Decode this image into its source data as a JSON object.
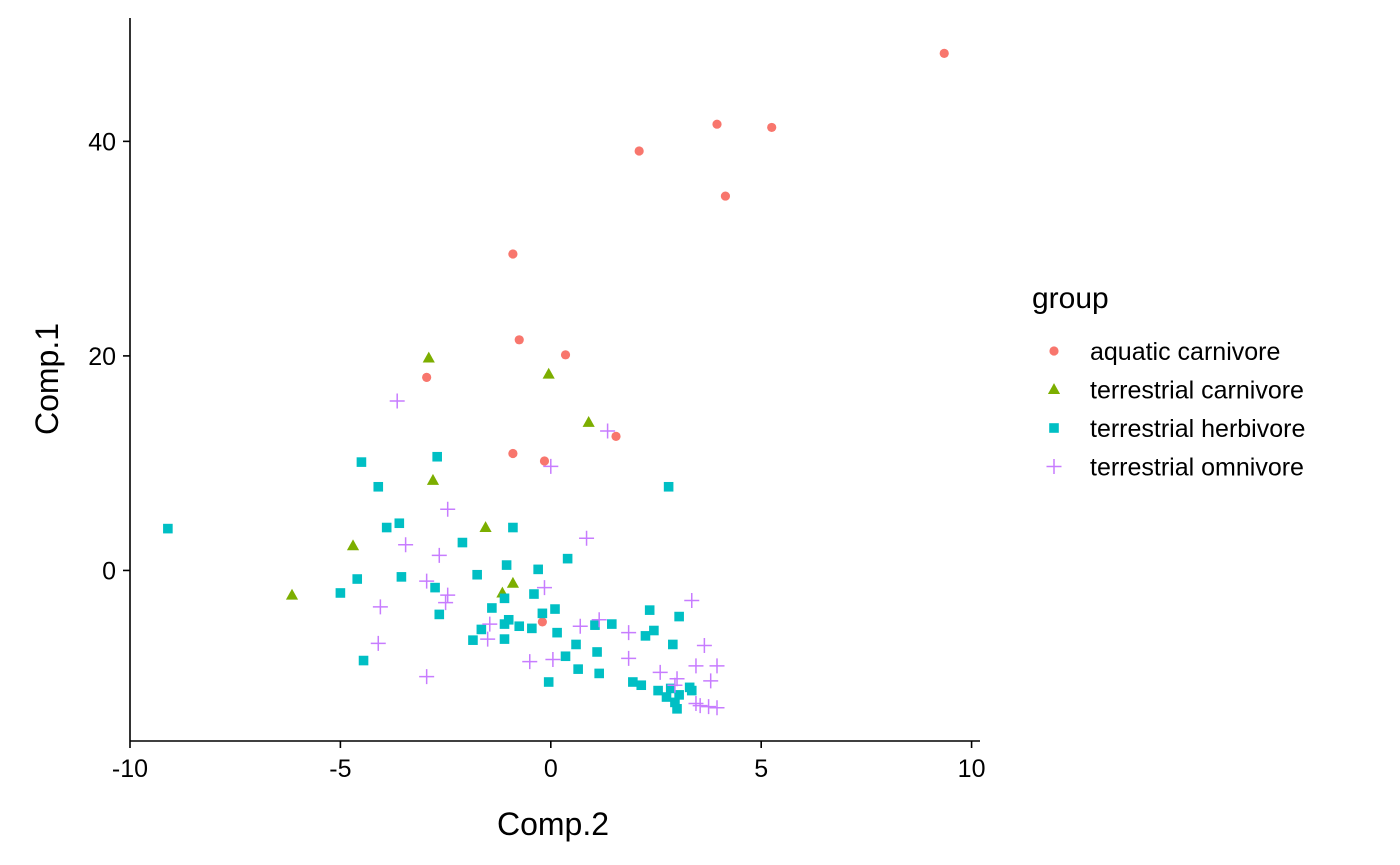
{
  "chart_data": {
    "type": "scatter",
    "title": "",
    "xlabel": "Comp.2",
    "ylabel": "Comp.1",
    "xlim": [
      -10,
      10.2
    ],
    "ylim": [
      -15.9,
      51.5
    ],
    "xticks": [
      -10,
      -5,
      0,
      5,
      10
    ],
    "xtick_labels": [
      "-10",
      "-5",
      "0",
      "5",
      "10"
    ],
    "yticks": [
      0,
      20,
      40
    ],
    "ytick_labels": [
      "0",
      "20",
      "40"
    ],
    "grid": false,
    "legend": {
      "title": "group",
      "position": "right"
    },
    "series": [
      {
        "name": "aquatic carnivore",
        "shape": "circle",
        "color": "#F8766D",
        "points": [
          [
            9.35,
            48.2
          ],
          [
            3.95,
            41.6
          ],
          [
            5.25,
            41.3
          ],
          [
            2.1,
            39.1
          ],
          [
            4.15,
            34.9
          ],
          [
            -0.9,
            29.5
          ],
          [
            -0.75,
            21.5
          ],
          [
            0.35,
            20.1
          ],
          [
            -2.95,
            18.0
          ],
          [
            1.55,
            12.5
          ],
          [
            -0.9,
            10.9
          ],
          [
            -0.15,
            10.2
          ],
          [
            -0.2,
            -4.8
          ]
        ]
      },
      {
        "name": "terrestrial carnivore",
        "shape": "triangle",
        "color": "#7CAE00",
        "points": [
          [
            -2.9,
            19.8
          ],
          [
            -0.05,
            18.3
          ],
          [
            0.9,
            13.8
          ],
          [
            -2.8,
            8.4
          ],
          [
            -1.55,
            4.0
          ],
          [
            -4.7,
            2.3
          ],
          [
            -0.9,
            -1.2
          ],
          [
            -6.15,
            -2.3
          ],
          [
            -1.15,
            -2.1
          ]
        ]
      },
      {
        "name": "terrestrial herbivore",
        "shape": "square",
        "color": "#00BFC4",
        "points": [
          [
            -9.1,
            3.9
          ],
          [
            -4.5,
            10.1
          ],
          [
            -2.7,
            10.6
          ],
          [
            2.8,
            7.8
          ],
          [
            -4.1,
            7.8
          ],
          [
            -3.6,
            4.4
          ],
          [
            -3.9,
            4.0
          ],
          [
            -0.9,
            4.0
          ],
          [
            -2.1,
            2.6
          ],
          [
            0.4,
            1.1
          ],
          [
            -1.05,
            0.5
          ],
          [
            -0.3,
            0.1
          ],
          [
            -1.75,
            -0.4
          ],
          [
            -3.55,
            -0.6
          ],
          [
            -4.6,
            -0.8
          ],
          [
            -2.75,
            -1.6
          ],
          [
            -5.0,
            -2.1
          ],
          [
            -0.4,
            -2.2
          ],
          [
            -1.1,
            -2.6
          ],
          [
            -1.4,
            -3.5
          ],
          [
            0.1,
            -3.6
          ],
          [
            -0.2,
            -4.0
          ],
          [
            -2.65,
            -4.1
          ],
          [
            2.35,
            -3.7
          ],
          [
            3.05,
            -4.3
          ],
          [
            -1.0,
            -4.6
          ],
          [
            -1.1,
            -5.0
          ],
          [
            -0.75,
            -5.2
          ],
          [
            -0.45,
            -5.4
          ],
          [
            1.05,
            -5.1
          ],
          [
            1.45,
            -5.0
          ],
          [
            2.45,
            -5.6
          ],
          [
            -1.65,
            -5.5
          ],
          [
            0.15,
            -5.8
          ],
          [
            2.25,
            -6.1
          ],
          [
            -1.85,
            -6.5
          ],
          [
            -1.1,
            -6.4
          ],
          [
            0.6,
            -6.9
          ],
          [
            2.9,
            -6.9
          ],
          [
            1.1,
            -7.6
          ],
          [
            0.35,
            -8.0
          ],
          [
            -4.45,
            -8.4
          ],
          [
            0.65,
            -9.2
          ],
          [
            1.15,
            -9.6
          ],
          [
            -0.05,
            -10.4
          ],
          [
            1.95,
            -10.4
          ],
          [
            2.15,
            -10.7
          ],
          [
            2.55,
            -11.2
          ],
          [
            2.85,
            -11.0
          ],
          [
            3.3,
            -10.9
          ],
          [
            3.05,
            -11.6
          ],
          [
            2.95,
            -12.3
          ],
          [
            2.75,
            -11.8
          ],
          [
            3.35,
            -11.2
          ],
          [
            3.0,
            -12.9
          ]
        ]
      },
      {
        "name": "terrestrial omnivore",
        "shape": "plus",
        "color": "#C77CFF",
        "points": [
          [
            -3.65,
            15.8
          ],
          [
            1.35,
            13.0
          ],
          [
            0.0,
            9.7
          ],
          [
            -2.45,
            5.7
          ],
          [
            0.85,
            3.0
          ],
          [
            -3.45,
            2.4
          ],
          [
            -2.65,
            1.4
          ],
          [
            -2.95,
            -1.0
          ],
          [
            -0.15,
            -1.6
          ],
          [
            -2.45,
            -2.3
          ],
          [
            -4.05,
            -3.4
          ],
          [
            -2.5,
            -3.0
          ],
          [
            1.15,
            -4.6
          ],
          [
            0.7,
            -5.2
          ],
          [
            -1.45,
            -5.0
          ],
          [
            1.85,
            -5.8
          ],
          [
            -1.5,
            -6.4
          ],
          [
            -4.1,
            -6.8
          ],
          [
            3.35,
            -2.8
          ],
          [
            3.65,
            -7.0
          ],
          [
            -0.5,
            -8.5
          ],
          [
            0.05,
            -8.3
          ],
          [
            1.85,
            -8.2
          ],
          [
            3.45,
            -8.9
          ],
          [
            3.95,
            -8.9
          ],
          [
            2.6,
            -9.5
          ],
          [
            3.0,
            -10.1
          ],
          [
            3.8,
            -10.3
          ],
          [
            -2.95,
            -9.9
          ],
          [
            3.55,
            -12.6
          ],
          [
            3.75,
            -12.7
          ],
          [
            3.95,
            -12.8
          ],
          [
            3.45,
            -12.4
          ],
          [
            2.95,
            -10.7
          ]
        ]
      }
    ]
  }
}
